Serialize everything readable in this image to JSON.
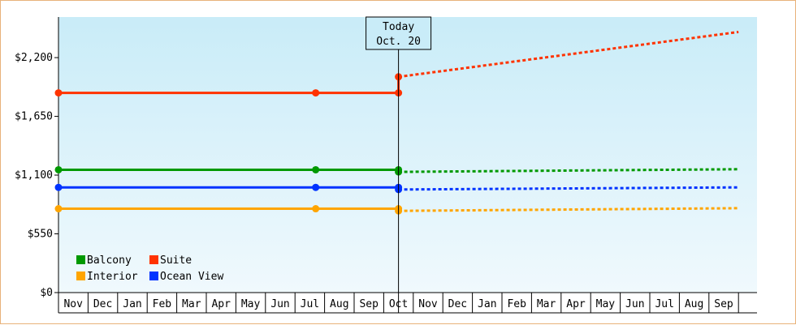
{
  "chart_data": {
    "type": "line",
    "y_ticks": [
      "$0",
      "$550",
      "$1,100",
      "$1,650",
      "$2,200"
    ],
    "y_tick_values": [
      0,
      550,
      1100,
      1650,
      2200
    ],
    "ylim": [
      0,
      2580
    ],
    "months": [
      "Nov",
      "Dec",
      "Jan",
      "Feb",
      "Mar",
      "Apr",
      "May",
      "Jun",
      "Jul",
      "Aug",
      "Sep",
      "Oct",
      "Nov",
      "Dec",
      "Jan",
      "Feb",
      "Mar",
      "Apr",
      "May",
      "Jun",
      "Jul",
      "Aug",
      "Sep"
    ],
    "today_marker": {
      "line1": "Today",
      "line2": "Oct. 20",
      "month_index": 11.5
    },
    "legend_placement": "bottom-left",
    "grid": false,
    "background_gradient": [
      "#c9ecf8",
      "#f0f9fd"
    ],
    "series": [
      {
        "name": "Balcony",
        "color": "#009900",
        "actual": [
          [
            0,
            1150
          ],
          [
            8.7,
            1150
          ],
          [
            11.5,
            1150
          ]
        ],
        "markers": [
          [
            0,
            1150
          ],
          [
            8.7,
            1150
          ],
          [
            11.5,
            1150
          ],
          [
            11.5,
            1130
          ]
        ],
        "forecast": [
          [
            11.5,
            1130
          ],
          [
            23,
            1155
          ]
        ]
      },
      {
        "name": "Suite",
        "color": "#ff3300",
        "actual": [
          [
            0,
            1870
          ],
          [
            8.7,
            1870
          ],
          [
            11.5,
            1870
          ]
        ],
        "markers": [
          [
            0,
            1870
          ],
          [
            8.7,
            1870
          ],
          [
            11.5,
            1870
          ],
          [
            11.5,
            2020
          ]
        ],
        "forecast": [
          [
            11.5,
            2020
          ],
          [
            23,
            2440
          ]
        ]
      },
      {
        "name": "Interior",
        "color": "#ffa500",
        "actual": [
          [
            0,
            785
          ],
          [
            8.7,
            785
          ],
          [
            11.5,
            785
          ]
        ],
        "markers": [
          [
            0,
            785
          ],
          [
            8.7,
            785
          ],
          [
            11.5,
            785
          ],
          [
            11.5,
            765
          ]
        ],
        "forecast": [
          [
            11.5,
            765
          ],
          [
            23,
            790
          ]
        ]
      },
      {
        "name": "Ocean View",
        "color": "#0033ff",
        "actual": [
          [
            0,
            985
          ],
          [
            8.7,
            985
          ],
          [
            11.5,
            985
          ]
        ],
        "markers": [
          [
            0,
            985
          ],
          [
            8.7,
            985
          ],
          [
            11.5,
            985
          ],
          [
            11.5,
            965
          ]
        ],
        "forecast": [
          [
            11.5,
            965
          ],
          [
            23,
            985
          ]
        ]
      }
    ],
    "legend_order": [
      "Balcony",
      "Suite",
      "Interior",
      "Ocean View"
    ]
  }
}
